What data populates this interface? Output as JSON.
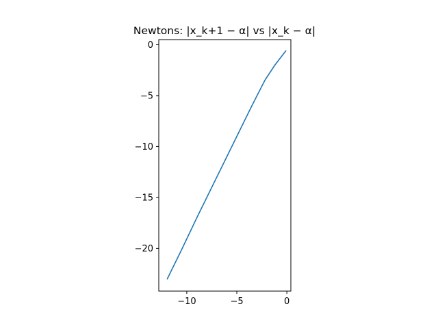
{
  "chart_data": {
    "type": "line",
    "title": "Newtons: |x_k+1 − α| vs |x_k − α|",
    "xlabel": "",
    "ylabel": "",
    "xlim": [
      -12.8,
      0.4
    ],
    "ylim": [
      -24.2,
      0.5
    ],
    "xticks": [
      -10,
      -5,
      0
    ],
    "xtick_labels": [
      "−10",
      "−5",
      "0"
    ],
    "yticks": [
      0,
      -5,
      -10,
      -15,
      -20
    ],
    "ytick_labels": [
      "0",
      "−5",
      "−10",
      "−15",
      "−20"
    ],
    "grid": false,
    "legend": "none",
    "series": [
      {
        "color": "#1f77b4",
        "x": [
          -11.95,
          -10.5,
          -9.0,
          -7.5,
          -6.0,
          -4.5,
          -3.5,
          -2.2,
          -1.2,
          -0.1
        ],
        "y": [
          -23.0,
          -20.1,
          -17.0,
          -14.0,
          -11.0,
          -8.0,
          -6.0,
          -3.5,
          -2.0,
          -0.6
        ]
      }
    ]
  }
}
